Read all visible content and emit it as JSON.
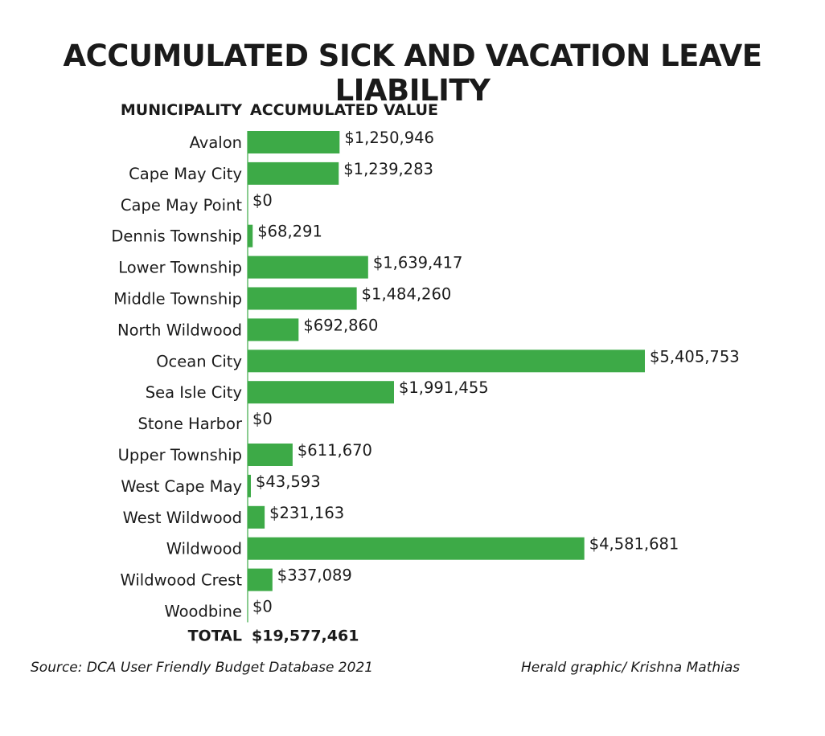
{
  "title": "ACCUMULATED SICK AND VACATION LEAVE LIABILITY",
  "column_headers": {
    "category": "MUNICIPALITY",
    "value": "ACCUMULATED VALUE"
  },
  "colors": {
    "bar": "#3daa47",
    "axis": "#3daa47"
  },
  "chart_data": {
    "type": "bar",
    "orientation": "horizontal",
    "categories": [
      "Avalon",
      "Cape May City",
      "Cape May Point",
      "Dennis Township",
      "Lower Township",
      "Middle Township",
      "North Wildwood",
      "Ocean City",
      "Sea Isle City",
      "Stone Harbor",
      "Upper Township",
      "West Cape May",
      "West Wildwood",
      "Wildwood",
      "Wildwood Crest",
      "Woodbine"
    ],
    "values": [
      1250946,
      1239283,
      0,
      68291,
      1639417,
      1484260,
      692860,
      5405753,
      1991455,
      0,
      611670,
      43593,
      231163,
      4581681,
      337089,
      0
    ],
    "value_labels": [
      "$1,250,946",
      "$1,239,283",
      "$0",
      "$68,291",
      "$1,639,417",
      "$1,484,260",
      "$692,860",
      "$5,405,753",
      "$1,991,455",
      "$0",
      "$611,670",
      "$43,593",
      "$231,163",
      "$4,581,681",
      "$337,089",
      "$0"
    ],
    "total_label": "TOTAL",
    "total_value": "$19,577,461"
  },
  "footer": {
    "source": "Source: DCA User Friendly Budget Database 2021",
    "credit": "Herald graphic/ Krishna Mathias"
  }
}
